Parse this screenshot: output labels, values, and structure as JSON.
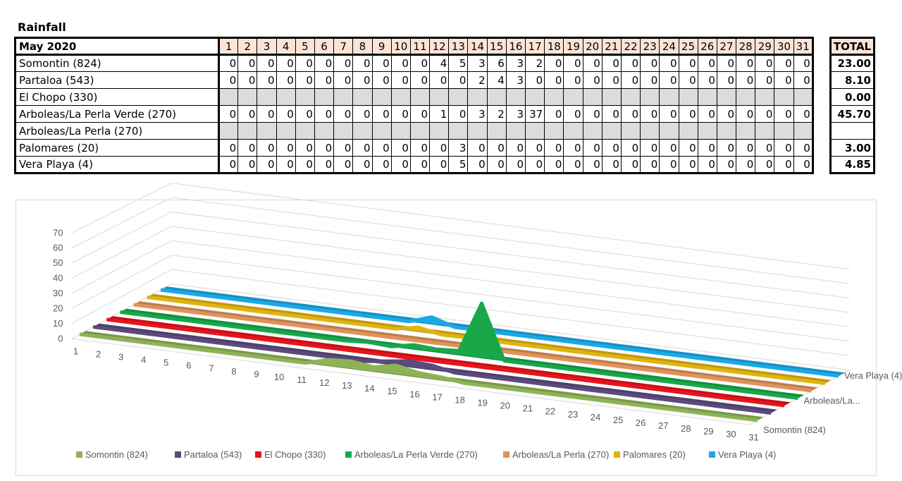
{
  "title": "Rainfall",
  "table": {
    "header": "May 2020",
    "days": [
      "1",
      "2",
      "3",
      "4",
      "5",
      "6",
      "7",
      "8",
      "9",
      "10",
      "11",
      "12",
      "13",
      "14",
      "15",
      "16",
      "17",
      "18",
      "19",
      "20",
      "21",
      "22",
      "23",
      "24",
      "25",
      "26",
      "27",
      "28",
      "29",
      "30",
      "31"
    ],
    "total_header": "TOTAL",
    "rows": [
      {
        "name": "Somontin (824)",
        "values": [
          "0",
          "0",
          "0",
          "0",
          "0",
          "0",
          "0",
          "0",
          "0",
          "0",
          "0",
          "4",
          "5",
          "3",
          "6",
          "3",
          "2",
          "0",
          "0",
          "0",
          "0",
          "0",
          "0",
          "0",
          "0",
          "0",
          "0",
          "0",
          "0",
          "0",
          "0"
        ],
        "total": "23.00"
      },
      {
        "name": "Partaloa (543)",
        "values": [
          "0",
          "0",
          "0",
          "0",
          "0",
          "0",
          "0",
          "0",
          "0",
          "0",
          "0",
          "0",
          "0",
          "2",
          "4",
          "3",
          "0",
          "0",
          "0",
          "0",
          "0",
          "0",
          "0",
          "0",
          "0",
          "0",
          "0",
          "0",
          "0",
          "0",
          "0"
        ],
        "total": "8.10"
      },
      {
        "name": "El Chopo (330)",
        "values": [
          "",
          "",
          "",
          "",
          "",
          "",
          "",
          "",
          "",
          "",
          "",
          "",
          "",
          "",
          "",
          "",
          "",
          "",
          "",
          "",
          "",
          "",
          "",
          "",
          "",
          "",
          "",
          "",
          "",
          "",
          ""
        ],
        "total": "0.00"
      },
      {
        "name": "Arboleas/La Perla Verde (270)",
        "values": [
          "0",
          "0",
          "0",
          "0",
          "0",
          "0",
          "0",
          "0",
          "0",
          "0",
          "0",
          "1",
          "0",
          "3",
          "2",
          "3",
          "37",
          "0",
          "0",
          "0",
          "0",
          "0",
          "0",
          "0",
          "0",
          "0",
          "0",
          "0",
          "0",
          "0",
          "0"
        ],
        "total": "45.70"
      },
      {
        "name": "Arboleas/La Perla (270)",
        "values": [
          "",
          "",
          "",
          "",
          "",
          "",
          "",
          "",
          "",
          "",
          "",
          "",
          "",
          "",
          "",
          "",
          "",
          "",
          "",
          "",
          "",
          "",
          "",
          "",
          "",
          "",
          "",
          "",
          "",
          "",
          ""
        ],
        "total": ""
      },
      {
        "name": "Palomares (20)",
        "values": [
          "0",
          "0",
          "0",
          "0",
          "0",
          "0",
          "0",
          "0",
          "0",
          "0",
          "0",
          "0",
          "3",
          "0",
          "0",
          "0",
          "0",
          "0",
          "0",
          "0",
          "0",
          "0",
          "0",
          "0",
          "0",
          "0",
          "0",
          "0",
          "0",
          "0",
          "0"
        ],
        "total": "3.00"
      },
      {
        "name": "Vera Playa (4)",
        "values": [
          "0",
          "0",
          "0",
          "0",
          "0",
          "0",
          "0",
          "0",
          "0",
          "0",
          "0",
          "0",
          "5",
          "0",
          "0",
          "0",
          "0",
          "0",
          "0",
          "0",
          "0",
          "0",
          "0",
          "0",
          "0",
          "0",
          "0",
          "0",
          "0",
          "0",
          "0"
        ],
        "total": "4.85"
      }
    ]
  },
  "chart_data": {
    "type": "area",
    "title": "",
    "xlabel": "",
    "ylabel": "",
    "categories": [
      "1",
      "2",
      "3",
      "4",
      "5",
      "6",
      "7",
      "8",
      "9",
      "10",
      "11",
      "12",
      "13",
      "14",
      "15",
      "16",
      "17",
      "18",
      "19",
      "20",
      "21",
      "22",
      "23",
      "24",
      "25",
      "26",
      "27",
      "28",
      "29",
      "30",
      "31"
    ],
    "ylim": [
      0,
      70
    ],
    "yticks": [
      "0",
      "10",
      "20",
      "30",
      "40",
      "50",
      "60",
      "70"
    ],
    "depth_labels": [
      "Somontin (824)",
      "Arboleas/La...",
      "Vera Playa (4)"
    ],
    "grid": true,
    "legend_position": "bottom",
    "series": [
      {
        "name": "Somontin (824)",
        "color": "#8db356",
        "values": [
          0,
          0,
          0,
          0,
          0,
          0,
          0,
          0,
          0,
          0,
          0,
          4,
          5,
          3,
          6,
          3,
          2,
          0,
          0,
          0,
          0,
          0,
          0,
          0,
          0,
          0,
          0,
          0,
          0,
          0,
          0
        ]
      },
      {
        "name": "Partaloa (543)",
        "color": "#5c4a7d",
        "values": [
          0,
          0,
          0,
          0,
          0,
          0,
          0,
          0,
          0,
          0,
          0,
          0,
          0,
          2,
          4,
          3,
          0,
          0,
          0,
          0,
          0,
          0,
          0,
          0,
          0,
          0,
          0,
          0,
          0,
          0,
          0
        ]
      },
      {
        "name": "El Chopo (330)",
        "color": "#e8141c",
        "values": [
          0,
          0,
          0,
          0,
          0,
          0,
          0,
          0,
          0,
          0,
          0,
          0,
          0,
          0,
          0,
          0,
          0,
          0,
          0,
          0,
          0,
          0,
          0,
          0,
          0,
          0,
          0,
          0,
          0,
          0,
          0
        ]
      },
      {
        "name": "Arboleas/La Perla Verde (270)",
        "color": "#18a84a",
        "values": [
          0,
          0,
          0,
          0,
          0,
          0,
          0,
          0,
          0,
          0,
          0,
          1,
          0,
          3,
          2,
          3,
          37,
          0,
          0,
          0,
          0,
          0,
          0,
          0,
          0,
          0,
          0,
          0,
          0,
          0,
          0
        ]
      },
      {
        "name": "Arboleas/La Perla (270)",
        "color": "#e0935a",
        "values": [
          0,
          0,
          0,
          0,
          0,
          0,
          0,
          0,
          0,
          0,
          0,
          0,
          0,
          0,
          0,
          0,
          0,
          0,
          0,
          0,
          0,
          0,
          0,
          0,
          0,
          0,
          0,
          0,
          0,
          0,
          0
        ]
      },
      {
        "name": "Palomares (20)",
        "color": "#e0b410",
        "values": [
          0,
          0,
          0,
          0,
          0,
          0,
          0,
          0,
          0,
          0,
          0,
          0,
          3,
          0,
          0,
          0,
          0,
          0,
          0,
          0,
          0,
          0,
          0,
          0,
          0,
          0,
          0,
          0,
          0,
          0,
          0
        ]
      },
      {
        "name": "Vera Playa (4)",
        "color": "#19a9e6",
        "values": [
          0,
          0,
          0,
          0,
          0,
          0,
          0,
          0,
          0,
          0,
          0,
          0,
          5,
          0,
          0,
          0,
          0,
          0,
          0,
          0,
          0,
          0,
          0,
          0,
          0,
          0,
          0,
          0,
          0,
          0,
          0
        ]
      }
    ]
  }
}
